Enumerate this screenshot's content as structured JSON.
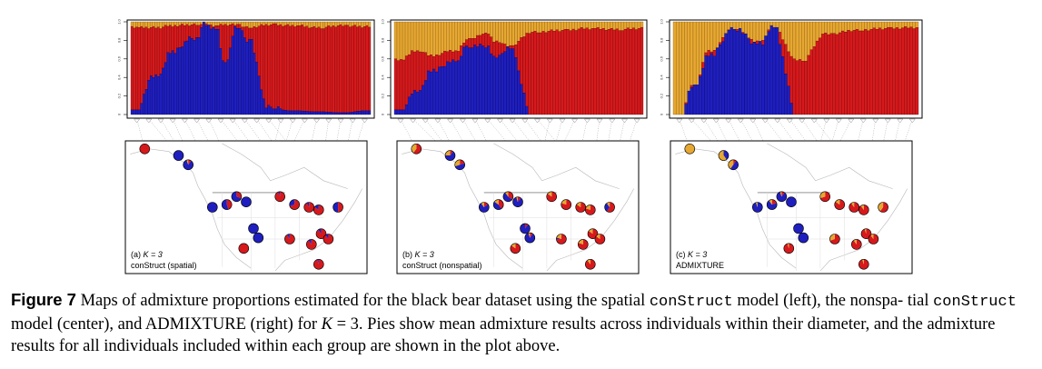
{
  "colors": {
    "red": "#d7191c",
    "blue": "#1f1fbf",
    "yellow": "#e6a830",
    "border": "#000000",
    "map_lines": "#b8b8b8"
  },
  "yticks": [
    "0",
    "0.2",
    "0.4",
    "0.6",
    "0.8",
    "1.0"
  ],
  "panels": [
    {
      "id": "a",
      "label_prefix": "(a) ",
      "label_k": "K = 3",
      "method": "conStruct (spatial)",
      "chart_type": "bar",
      "bar_profile": [
        {
          "n": 3,
          "blue": 0.05,
          "yellow": 0.05
        },
        {
          "n": 9,
          "blue": 0.4,
          "yellow": 0.05
        },
        {
          "n": 6,
          "blue": 0.65,
          "yellow": 0.03
        },
        {
          "n": 10,
          "blue": 0.8,
          "yellow": 0.02
        },
        {
          "n": 3,
          "blue": 0.96,
          "yellow": 0.02
        },
        {
          "n": 5,
          "blue": 0.9,
          "yellow": 0.03
        },
        {
          "n": 4,
          "blue": 0.55,
          "yellow": 0.02
        },
        {
          "n": 5,
          "blue": 0.92,
          "yellow": 0.02
        },
        {
          "n": 5,
          "blue": 0.78,
          "yellow": 0.05
        },
        {
          "n": 10,
          "blue": 0.06,
          "yellow": 0.02
        },
        {
          "n": 10,
          "blue": 0.04,
          "yellow": 0.03
        },
        {
          "n": 10,
          "blue": 0.03,
          "yellow": 0.05
        },
        {
          "n": 10,
          "blue": 0.02,
          "yellow": 0.03
        },
        {
          "n": 10,
          "blue": 0.04,
          "yellow": 0.04
        }
      ]
    },
    {
      "id": "b",
      "label_prefix": "(b) ",
      "label_k": "K = 3",
      "method": "conStruct (nonspatial)",
      "chart_type": "bar",
      "bar_profile": [
        {
          "n": 3,
          "blue": 0.05,
          "yellow": 0.4
        },
        {
          "n": 6,
          "blue": 0.22,
          "yellow": 0.3
        },
        {
          "n": 6,
          "blue": 0.45,
          "yellow": 0.35
        },
        {
          "n": 8,
          "blue": 0.55,
          "yellow": 0.3
        },
        {
          "n": 5,
          "blue": 0.72,
          "yellow": 0.18
        },
        {
          "n": 6,
          "blue": 0.72,
          "yellow": 0.12
        },
        {
          "n": 4,
          "blue": 0.6,
          "yellow": 0.2
        },
        {
          "n": 5,
          "blue": 0.7,
          "yellow": 0.25
        },
        {
          "n": 10,
          "blue": 0.0,
          "yellow": 0.1
        },
        {
          "n": 10,
          "blue": 0.0,
          "yellow": 0.08
        },
        {
          "n": 10,
          "blue": 0.0,
          "yellow": 0.06
        },
        {
          "n": 10,
          "blue": 0.0,
          "yellow": 0.07
        },
        {
          "n": 8,
          "blue": 0.0,
          "yellow": 0.06
        }
      ]
    },
    {
      "id": "c",
      "label_prefix": "(c) ",
      "label_k": "K = 3",
      "method": "ADMIXTURE",
      "chart_type": "bar",
      "bar_profile": [
        {
          "n": 3,
          "blue": 0.0,
          "yellow": 1.0
        },
        {
          "n": 5,
          "blue": 0.28,
          "yellow": 0.68
        },
        {
          "n": 6,
          "blue": 0.62,
          "yellow": 0.3
        },
        {
          "n": 9,
          "blue": 0.9,
          "yellow": 0.08
        },
        {
          "n": 8,
          "blue": 0.75,
          "yellow": 0.2
        },
        {
          "n": 5,
          "blue": 0.92,
          "yellow": 0.05
        },
        {
          "n": 10,
          "blue": 0.0,
          "yellow": 0.4
        },
        {
          "n": 10,
          "blue": 0.0,
          "yellow": 0.12
        },
        {
          "n": 10,
          "blue": 0.0,
          "yellow": 0.08
        },
        {
          "n": 10,
          "blue": 0.0,
          "yellow": 0.06
        },
        {
          "n": 10,
          "blue": 0.0,
          "yellow": 0.05
        }
      ]
    }
  ],
  "pies": {
    "a": [
      [
        1,
        0,
        0
      ],
      [
        0,
        1,
        0
      ],
      [
        0.1,
        0.85,
        0.05
      ],
      [
        0,
        1,
        0
      ],
      [
        0.45,
        0.55,
        0
      ],
      [
        0.3,
        0.7,
        0
      ],
      [
        0,
        1,
        0
      ],
      [
        0.95,
        0.05,
        0
      ],
      [
        0.7,
        0.3,
        0
      ],
      [
        0.92,
        0.08,
        0
      ],
      [
        0.85,
        0.15,
        0
      ],
      [
        0.5,
        0.5,
        0
      ],
      [
        0,
        1,
        0
      ],
      [
        0,
        1,
        0
      ],
      [
        1,
        0,
        0
      ],
      [
        0.92,
        0.08,
        0
      ],
      [
        0.9,
        0.1,
        0
      ],
      [
        0.9,
        0.1,
        0
      ],
      [
        0.9,
        0.1,
        0
      ],
      [
        0.95,
        0.05,
        0
      ]
    ],
    "b": [
      [
        0.6,
        0,
        0.4
      ],
      [
        0.1,
        0.65,
        0.25
      ],
      [
        0.2,
        0.5,
        0.3
      ],
      [
        0.15,
        0.75,
        0.1
      ],
      [
        0.4,
        0.45,
        0.15
      ],
      [
        0.35,
        0.55,
        0.1
      ],
      [
        0.1,
        0.85,
        0.05
      ],
      [
        0.85,
        0,
        0.15
      ],
      [
        0.8,
        0,
        0.2
      ],
      [
        0.85,
        0,
        0.15
      ],
      [
        0.8,
        0,
        0.2
      ],
      [
        0.6,
        0.3,
        0.1
      ],
      [
        0.1,
        0.9,
        0
      ],
      [
        0.1,
        0.85,
        0.05
      ],
      [
        0.85,
        0,
        0.15
      ],
      [
        0.75,
        0.05,
        0.2
      ],
      [
        0.8,
        0,
        0.2
      ],
      [
        0.85,
        0,
        0.15
      ],
      [
        0.85,
        0,
        0.15
      ],
      [
        0.9,
        0,
        0.1
      ]
    ],
    "c": [
      [
        0,
        0,
        1
      ],
      [
        0,
        0.4,
        0.6
      ],
      [
        0.1,
        0.5,
        0.4
      ],
      [
        0,
        0.95,
        0.05
      ],
      [
        0.2,
        0.7,
        0.1
      ],
      [
        0.1,
        0.85,
        0.05
      ],
      [
        0,
        1,
        0
      ],
      [
        0.7,
        0,
        0.3
      ],
      [
        0.85,
        0,
        0.15
      ],
      [
        0.9,
        0,
        0.1
      ],
      [
        0.9,
        0,
        0.1
      ],
      [
        0.6,
        0,
        0.4
      ],
      [
        0,
        1,
        0
      ],
      [
        0,
        1,
        0
      ],
      [
        0.95,
        0,
        0.05
      ],
      [
        0.7,
        0,
        0.3
      ],
      [
        0.9,
        0,
        0.1
      ],
      [
        0.95,
        0,
        0.05
      ],
      [
        0.9,
        0,
        0.1
      ],
      [
        0.95,
        0,
        0.05
      ]
    ]
  },
  "caption": {
    "label": "Figure 7",
    "t1": " Maps of admixture proportions estimated for the black bear dataset using the spatial ",
    "code1": "conStruct",
    "t2": " model (left), the nonspa- tial ",
    "code2": "conStruct",
    "t3": " model (center), and ADMIXTURE (right) for ",
    "math": "K",
    "t4": " = 3. Pies show mean admixture results across individuals within their diameter, and the admixture results for all individuals included within each group are shown in the plot above."
  }
}
